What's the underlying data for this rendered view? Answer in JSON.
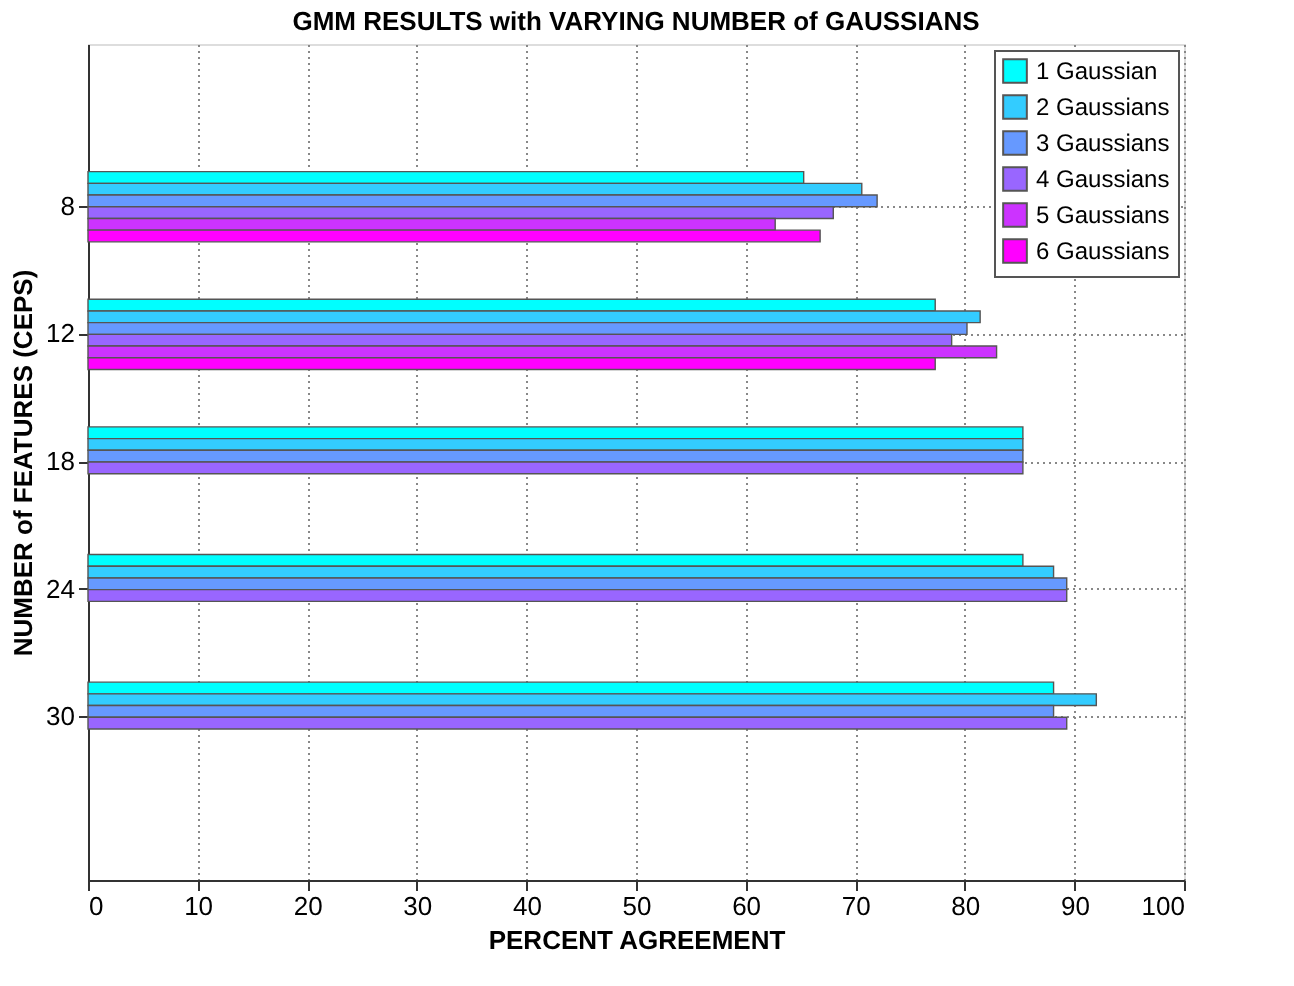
{
  "chart_data": {
    "type": "bar",
    "orientation": "horizontal",
    "title": "GMM RESULTS with VARYING NUMBER of GAUSSIANS",
    "xlabel": "PERCENT AGREEMENT",
    "ylabel": "NUMBER of FEATURES (CEPS)",
    "categories": [
      "8",
      "12",
      "18",
      "24",
      "30"
    ],
    "series": [
      {
        "name": "1 Gaussian",
        "color": "#00ffff",
        "values": [
          65.3,
          77.3,
          85.3,
          85.3,
          88.1
        ]
      },
      {
        "name": "2 Gaussians",
        "color": "#33ccff",
        "values": [
          70.6,
          81.4,
          85.3,
          88.1,
          92.0
        ]
      },
      {
        "name": "3 Gaussians",
        "color": "#6699ff",
        "values": [
          72.0,
          80.2,
          85.3,
          89.3,
          88.1
        ]
      },
      {
        "name": "4 Gaussians",
        "color": "#9966ff",
        "values": [
          68.0,
          78.8,
          85.3,
          89.3,
          89.3
        ]
      },
      {
        "name": "5 Gaussians",
        "color": "#cc33ff",
        "values": [
          62.7,
          82.9,
          null,
          null,
          null
        ]
      },
      {
        "name": "6 Gaussians",
        "color": "#ff00ff",
        "values": [
          66.8,
          77.3,
          null,
          null,
          null
        ]
      }
    ],
    "xlim": [
      0,
      100
    ],
    "xticks": [
      0,
      10,
      20,
      30,
      40,
      50,
      60,
      70,
      80,
      90,
      100
    ],
    "grid": true,
    "legend": "top right"
  }
}
